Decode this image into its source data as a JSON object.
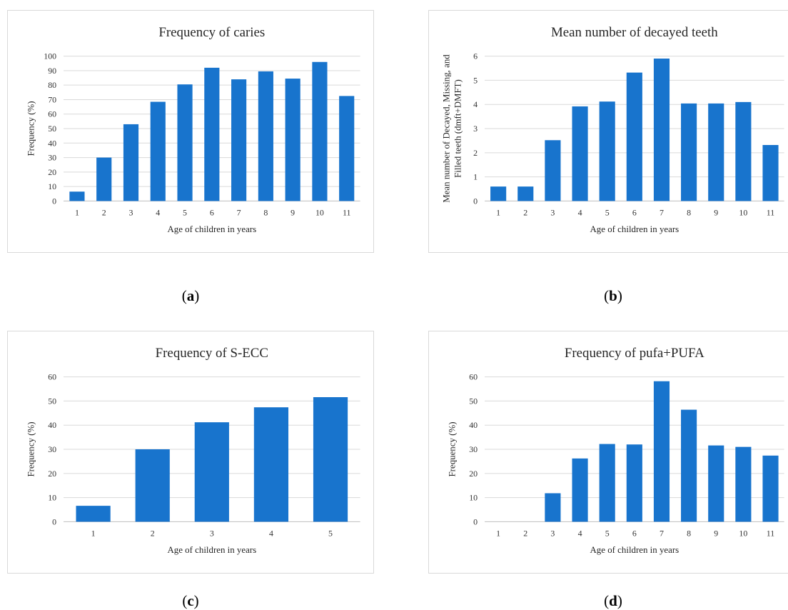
{
  "colors": {
    "bar": "#1874cd",
    "grid": "#d9d9d9",
    "text": "#262626",
    "border": "#d9d9d9"
  },
  "chart_data": [
    {
      "id": "a",
      "type": "bar",
      "title": "Frequency of caries",
      "xlabel": "Age of children in years",
      "ylabel": "Frequency (%)",
      "categories": [
        "1",
        "2",
        "3",
        "4",
        "5",
        "6",
        "7",
        "8",
        "9",
        "10",
        "11"
      ],
      "values": [
        6.5,
        30,
        53,
        68.5,
        80.5,
        92,
        84,
        89.5,
        84.5,
        96,
        72.5
      ],
      "ylim": [
        0,
        100
      ],
      "yticks": [
        "0",
        "10",
        "20",
        "30",
        "40",
        "50",
        "60",
        "70",
        "80",
        "90",
        "100"
      ],
      "grid": true,
      "legend": "none"
    },
    {
      "id": "b",
      "type": "bar",
      "title": "Mean number of decayed teeth",
      "xlabel": "Age of children in years",
      "ylabel_lines": [
        "Mean number of Decayed, Missing, and",
        "Filled teeth (dmft+DMFT)"
      ],
      "categories": [
        "1",
        "2",
        "3",
        "4",
        "5",
        "6",
        "7",
        "8",
        "9",
        "10",
        "11"
      ],
      "values": [
        0.6,
        0.6,
        2.52,
        3.92,
        4.12,
        5.32,
        5.9,
        4.04,
        4.04,
        4.1,
        2.32
      ],
      "ylim": [
        0,
        6
      ],
      "yticks": [
        "0",
        "1",
        "2",
        "3",
        "4",
        "5",
        "6"
      ],
      "grid": true,
      "legend": "none"
    },
    {
      "id": "c",
      "type": "bar",
      "title": "Frequency of S-ECC",
      "xlabel": "Age of children in years",
      "ylabel": "Frequency (%)",
      "categories": [
        "1",
        "2",
        "3",
        "4",
        "5"
      ],
      "values": [
        6.6,
        30,
        41.2,
        47.4,
        51.6
      ],
      "ylim": [
        0,
        60
      ],
      "yticks": [
        "0",
        "10",
        "20",
        "30",
        "40",
        "50",
        "60"
      ],
      "grid": true,
      "legend": "none"
    },
    {
      "id": "d",
      "type": "bar",
      "title": "Frequency of pufa+PUFA",
      "xlabel": "Age of children in years",
      "ylabel": "Frequency (%)",
      "categories": [
        "1",
        "2",
        "3",
        "4",
        "5",
        "6",
        "7",
        "8",
        "9",
        "10",
        "11"
      ],
      "values": [
        0,
        0,
        11.8,
        26.2,
        32.2,
        32,
        58.2,
        46.4,
        31.6,
        31,
        27.4
      ],
      "ylim": [
        0,
        60
      ],
      "yticks": [
        "0",
        "10",
        "20",
        "30",
        "40",
        "50",
        "60"
      ],
      "grid": true,
      "legend": "none"
    }
  ],
  "captions": {
    "a": "a",
    "b": "b",
    "c": "c",
    "d": "d"
  }
}
